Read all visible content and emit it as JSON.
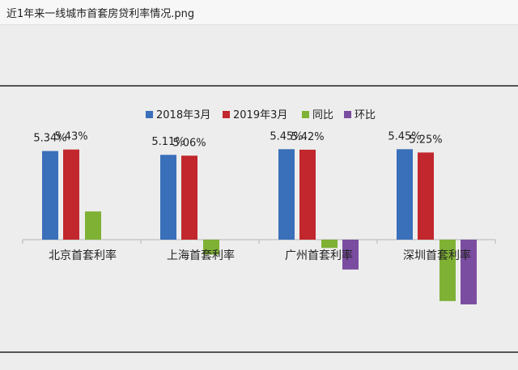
{
  "window": {
    "title": "近1年来一线城市首套房贷利率情况.png"
  },
  "colors": {
    "series_2018": "#3a6fba",
    "series_2019": "#c1272d",
    "series_yoy": "#7fb135",
    "series_mom": "#7a4da0"
  },
  "chart_data": {
    "type": "bar",
    "categories": [
      "北京首套利率",
      "上海首套利率",
      "广州首套利率",
      "深圳首套利率"
    ],
    "series": [
      {
        "name": "2018年3月",
        "values": [
          5.34,
          5.11,
          5.45,
          5.45
        ],
        "labels": [
          "5.34%",
          "5.11%",
          "5.45%",
          "5.45%"
        ]
      },
      {
        "name": "2019年3月",
        "values": [
          5.43,
          5.06,
          5.42,
          5.25
        ],
        "labels": [
          "5.43%",
          "5.06%",
          "5.42%",
          "5.25%"
        ]
      },
      {
        "name": "同比",
        "values": [
          1.7,
          -0.9,
          -0.5,
          -3.7
        ]
      },
      {
        "name": "环比",
        "values": [
          0,
          0,
          -1.8,
          -3.9
        ]
      }
    ],
    "legend_position": "top-center",
    "grid": false
  }
}
